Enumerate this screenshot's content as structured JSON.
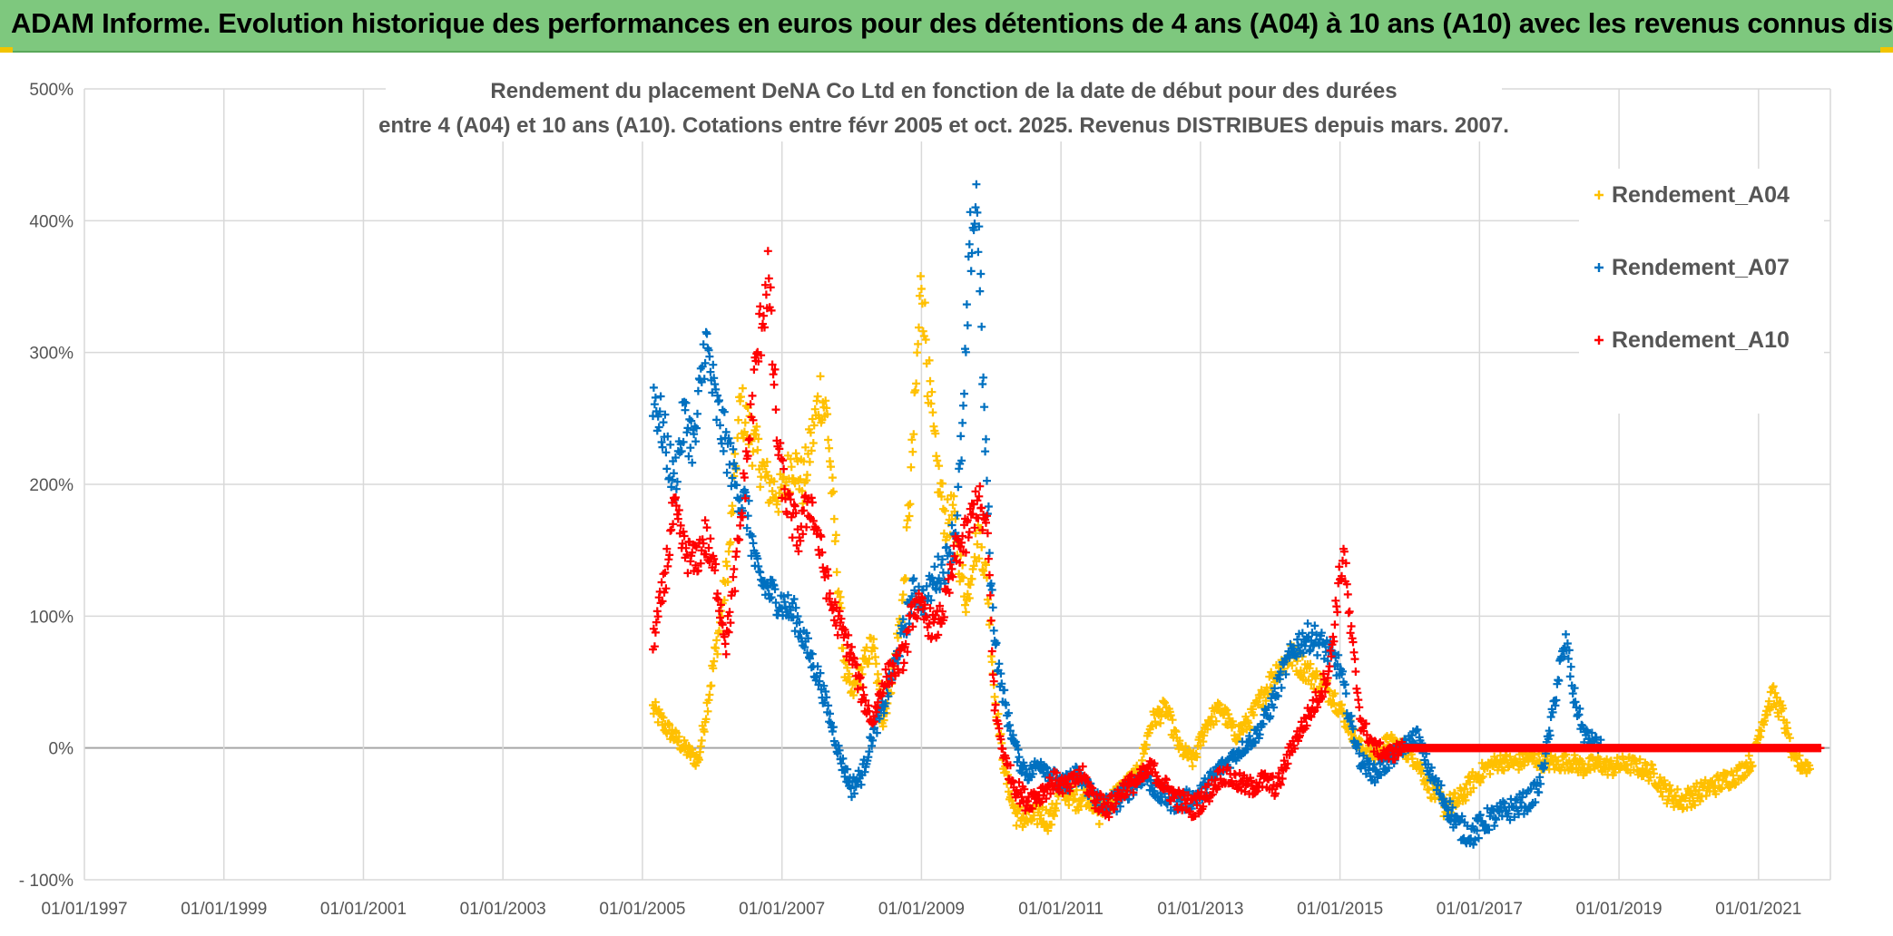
{
  "header": {
    "title": "ADAM Informe. Evolution historique des performances en euros pour des détentions de 4 ans (A04) à 10 ans (A10) avec les revenus connus distribués"
  },
  "colors": {
    "header_bg": "#7ec87e",
    "A04": "#ffc000",
    "A07": "#0070c0",
    "A10": "#ff0000",
    "grid": "#d9d9d9",
    "text": "#555555"
  },
  "chart_data": {
    "type": "scatter",
    "title_lines": [
      "Rendement du placement DeNA Co Ltd en fonction de la date de début pour des durées",
      "entre 4 (A04) et 10 ans (A10). Cotations entre févr 2005 et oct. 2025. Revenus DISTRIBUES depuis mars. 2007."
    ],
    "x_tick_labels": [
      "01/01/1997",
      "01/01/1999",
      "01/01/2001",
      "01/01/2003",
      "01/01/2005",
      "01/01/2007",
      "01/01/2009",
      "01/01/2011",
      "01/01/2013",
      "01/01/2015",
      "01/01/2017",
      "01/01/2019",
      "01/01/2021"
    ],
    "y_tick_labels": [
      "- 100%",
      "0%",
      "100%",
      "200%",
      "300%",
      "400%",
      "500%"
    ],
    "x_range": [
      1997.0,
      2022.03
    ],
    "y_range": [
      -100,
      500
    ],
    "y_ticks": [
      -100,
      0,
      100,
      200,
      300,
      400,
      500
    ],
    "marker": "+",
    "legend_position": "top-right",
    "series": [
      {
        "name": "Rendement_A04",
        "color": "#ffc000",
        "x_start": 2005.15,
        "x_end": 2021.75,
        "points": [
          [
            2005.15,
            30
          ],
          [
            2005.35,
            15
          ],
          [
            2005.6,
            0
          ],
          [
            2005.8,
            -10
          ],
          [
            2005.95,
            40
          ],
          [
            2006.1,
            90
          ],
          [
            2006.25,
            150
          ],
          [
            2006.4,
            260
          ],
          [
            2006.6,
            230
          ],
          [
            2006.8,
            200
          ],
          [
            2007.0,
            190
          ],
          [
            2007.15,
            220
          ],
          [
            2007.3,
            200
          ],
          [
            2007.45,
            240
          ],
          [
            2007.55,
            270
          ],
          [
            2007.65,
            250
          ],
          [
            2007.8,
            130
          ],
          [
            2007.9,
            60
          ],
          [
            2008.0,
            40
          ],
          [
            2008.15,
            60
          ],
          [
            2008.3,
            80
          ],
          [
            2008.45,
            20
          ],
          [
            2008.6,
            60
          ],
          [
            2008.75,
            120
          ],
          [
            2008.9,
            250
          ],
          [
            2009.0,
            360
          ],
          [
            2009.1,
            280
          ],
          [
            2009.2,
            220
          ],
          [
            2009.35,
            170
          ],
          [
            2009.45,
            180
          ],
          [
            2009.55,
            140
          ],
          [
            2009.65,
            110
          ],
          [
            2009.75,
            150
          ],
          [
            2009.85,
            160
          ],
          [
            2009.95,
            120
          ],
          [
            2010.05,
            40
          ],
          [
            2010.2,
            -20
          ],
          [
            2010.35,
            -50
          ],
          [
            2010.5,
            -55
          ],
          [
            2010.7,
            -50
          ],
          [
            2010.85,
            -55
          ],
          [
            2011.0,
            -30
          ],
          [
            2011.2,
            -40
          ],
          [
            2011.4,
            -35
          ],
          [
            2011.55,
            -50
          ],
          [
            2011.7,
            -40
          ],
          [
            2011.9,
            -30
          ],
          [
            2012.1,
            -20
          ],
          [
            2012.3,
            20
          ],
          [
            2012.5,
            30
          ],
          [
            2012.7,
            0
          ],
          [
            2012.9,
            -10
          ],
          [
            2013.1,
            20
          ],
          [
            2013.3,
            30
          ],
          [
            2013.5,
            10
          ],
          [
            2013.7,
            20
          ],
          [
            2013.9,
            40
          ],
          [
            2014.1,
            60
          ],
          [
            2014.3,
            70
          ],
          [
            2014.5,
            60
          ],
          [
            2014.7,
            50
          ],
          [
            2014.9,
            40
          ],
          [
            2015.1,
            20
          ],
          [
            2015.3,
            0
          ],
          [
            2015.5,
            -5
          ],
          [
            2015.7,
            5
          ],
          [
            2015.9,
            0
          ],
          [
            2016.1,
            -10
          ],
          [
            2016.3,
            -30
          ],
          [
            2016.5,
            -45
          ],
          [
            2016.7,
            -40
          ],
          [
            2016.9,
            -25
          ],
          [
            2017.1,
            -15
          ],
          [
            2017.3,
            -10
          ],
          [
            2017.5,
            -12
          ],
          [
            2017.7,
            -8
          ],
          [
            2017.9,
            -10
          ],
          [
            2018.1,
            -12
          ],
          [
            2018.3,
            -10
          ],
          [
            2018.5,
            -15
          ],
          [
            2018.7,
            -12
          ],
          [
            2018.9,
            -15
          ],
          [
            2019.1,
            -12
          ],
          [
            2019.3,
            -15
          ],
          [
            2019.5,
            -20
          ],
          [
            2019.7,
            -35
          ],
          [
            2019.9,
            -40
          ],
          [
            2020.1,
            -35
          ],
          [
            2020.3,
            -30
          ],
          [
            2020.5,
            -25
          ],
          [
            2020.7,
            -20
          ],
          [
            2020.9,
            -10
          ],
          [
            2021.05,
            20
          ],
          [
            2021.2,
            40
          ],
          [
            2021.35,
            25
          ],
          [
            2021.5,
            -10
          ],
          [
            2021.75,
            -15
          ]
        ]
      },
      {
        "name": "Rendement_A07",
        "color": "#0070c0",
        "x_start": 2005.15,
        "x_end": 2018.75,
        "points": [
          [
            2005.15,
            270
          ],
          [
            2005.3,
            240
          ],
          [
            2005.45,
            200
          ],
          [
            2005.6,
            250
          ],
          [
            2005.75,
            230
          ],
          [
            2005.9,
            310
          ],
          [
            2006.05,
            260
          ],
          [
            2006.2,
            230
          ],
          [
            2006.35,
            200
          ],
          [
            2006.5,
            180
          ],
          [
            2006.65,
            130
          ],
          [
            2006.8,
            120
          ],
          [
            2007.0,
            110
          ],
          [
            2007.2,
            100
          ],
          [
            2007.4,
            70
          ],
          [
            2007.55,
            50
          ],
          [
            2007.7,
            20
          ],
          [
            2007.85,
            -10
          ],
          [
            2008.0,
            -30
          ],
          [
            2008.15,
            -20
          ],
          [
            2008.3,
            10
          ],
          [
            2008.45,
            30
          ],
          [
            2008.6,
            60
          ],
          [
            2008.75,
            90
          ],
          [
            2008.9,
            120
          ],
          [
            2009.05,
            110
          ],
          [
            2009.2,
            130
          ],
          [
            2009.35,
            140
          ],
          [
            2009.5,
            170
          ],
          [
            2009.6,
            250
          ],
          [
            2009.7,
            380
          ],
          [
            2009.8,
            420
          ],
          [
            2009.9,
            250
          ],
          [
            2010.0,
            120
          ],
          [
            2010.1,
            60
          ],
          [
            2010.25,
            20
          ],
          [
            2010.4,
            -10
          ],
          [
            2010.55,
            -20
          ],
          [
            2010.7,
            -10
          ],
          [
            2010.85,
            -20
          ],
          [
            2011.0,
            -30
          ],
          [
            2011.2,
            -20
          ],
          [
            2011.4,
            -30
          ],
          [
            2011.6,
            -45
          ],
          [
            2011.8,
            -40
          ],
          [
            2012.0,
            -30
          ],
          [
            2012.2,
            -20
          ],
          [
            2012.4,
            -35
          ],
          [
            2012.6,
            -40
          ],
          [
            2012.8,
            -40
          ],
          [
            2013.0,
            -35
          ],
          [
            2013.2,
            -20
          ],
          [
            2013.4,
            -10
          ],
          [
            2013.6,
            0
          ],
          [
            2013.8,
            10
          ],
          [
            2014.0,
            30
          ],
          [
            2014.2,
            60
          ],
          [
            2014.4,
            80
          ],
          [
            2014.6,
            85
          ],
          [
            2014.8,
            75
          ],
          [
            2015.0,
            60
          ],
          [
            2015.15,
            20
          ],
          [
            2015.3,
            -10
          ],
          [
            2015.5,
            -20
          ],
          [
            2015.7,
            -10
          ],
          [
            2015.9,
            0
          ],
          [
            2016.1,
            10
          ],
          [
            2016.3,
            -20
          ],
          [
            2016.5,
            -40
          ],
          [
            2016.7,
            -60
          ],
          [
            2016.9,
            -65
          ],
          [
            2017.1,
            -55
          ],
          [
            2017.3,
            -50
          ],
          [
            2017.5,
            -45
          ],
          [
            2017.7,
            -40
          ],
          [
            2017.85,
            -30
          ],
          [
            2018.0,
            10
          ],
          [
            2018.15,
            60
          ],
          [
            2018.25,
            80
          ],
          [
            2018.35,
            40
          ],
          [
            2018.5,
            10
          ],
          [
            2018.75,
            0
          ]
        ]
      },
      {
        "name": "Rendement_A10",
        "color": "#ff0000",
        "x_start": 2005.15,
        "x_end": 2021.9,
        "points": [
          [
            2005.15,
            80
          ],
          [
            2005.3,
            120
          ],
          [
            2005.45,
            180
          ],
          [
            2005.6,
            150
          ],
          [
            2005.75,
            140
          ],
          [
            2005.9,
            160
          ],
          [
            2006.05,
            130
          ],
          [
            2006.2,
            80
          ],
          [
            2006.35,
            140
          ],
          [
            2006.5,
            220
          ],
          [
            2006.65,
            300
          ],
          [
            2006.8,
            360
          ],
          [
            2006.95,
            220
          ],
          [
            2007.1,
            180
          ],
          [
            2007.25,
            160
          ],
          [
            2007.4,
            190
          ],
          [
            2007.55,
            150
          ],
          [
            2007.7,
            110
          ],
          [
            2007.85,
            90
          ],
          [
            2008.0,
            70
          ],
          [
            2008.15,
            40
          ],
          [
            2008.3,
            20
          ],
          [
            2008.45,
            50
          ],
          [
            2008.6,
            60
          ],
          [
            2008.75,
            70
          ],
          [
            2008.9,
            110
          ],
          [
            2009.05,
            100
          ],
          [
            2009.2,
            90
          ],
          [
            2009.35,
            110
          ],
          [
            2009.5,
            150
          ],
          [
            2009.65,
            160
          ],
          [
            2009.8,
            190
          ],
          [
            2009.95,
            160
          ],
          [
            2010.05,
            30
          ],
          [
            2010.2,
            -10
          ],
          [
            2010.35,
            -30
          ],
          [
            2010.5,
            -40
          ],
          [
            2010.7,
            -35
          ],
          [
            2010.9,
            -25
          ],
          [
            2011.1,
            -30
          ],
          [
            2011.3,
            -20
          ],
          [
            2011.5,
            -40
          ],
          [
            2011.7,
            -45
          ],
          [
            2011.9,
            -30
          ],
          [
            2012.1,
            -25
          ],
          [
            2012.3,
            -15
          ],
          [
            2012.5,
            -30
          ],
          [
            2012.7,
            -40
          ],
          [
            2012.9,
            -45
          ],
          [
            2013.1,
            -35
          ],
          [
            2013.3,
            -20
          ],
          [
            2013.5,
            -25
          ],
          [
            2013.7,
            -30
          ],
          [
            2013.9,
            -25
          ],
          [
            2014.1,
            -30
          ],
          [
            2014.3,
            0
          ],
          [
            2014.5,
            20
          ],
          [
            2014.7,
            40
          ],
          [
            2014.85,
            60
          ],
          [
            2014.95,
            110
          ],
          [
            2015.05,
            150
          ],
          [
            2015.15,
            90
          ],
          [
            2015.3,
            20
          ],
          [
            2015.5,
            0
          ],
          [
            2015.7,
            -5
          ],
          [
            2015.9,
            0
          ],
          [
            2016.1,
            0
          ],
          [
            2016.5,
            0
          ],
          [
            2017.0,
            0
          ],
          [
            2017.5,
            0
          ],
          [
            2018.0,
            0
          ],
          [
            2018.5,
            0
          ],
          [
            2019.0,
            0
          ],
          [
            2019.5,
            0
          ],
          [
            2020.0,
            0
          ],
          [
            2020.5,
            0
          ],
          [
            2021.0,
            0
          ],
          [
            2021.5,
            0
          ],
          [
            2021.9,
            0
          ]
        ]
      }
    ]
  }
}
